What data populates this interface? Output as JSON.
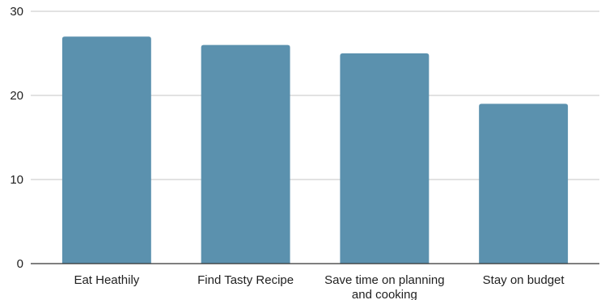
{
  "chart_data": {
    "type": "bar",
    "categories": [
      [
        "Eat Heathily"
      ],
      [
        "Find Tasty Recipe"
      ],
      [
        "Save time on planning",
        "and cooking"
      ],
      [
        "Stay on budget"
      ]
    ],
    "values": [
      27,
      26,
      25,
      19
    ],
    "ylim": [
      0,
      30
    ],
    "yticks": [
      0,
      10,
      20,
      30
    ],
    "grid": true,
    "legend": "none",
    "bar_color": "#5b91ae",
    "title": "",
    "xlabel": "",
    "ylabel": ""
  }
}
